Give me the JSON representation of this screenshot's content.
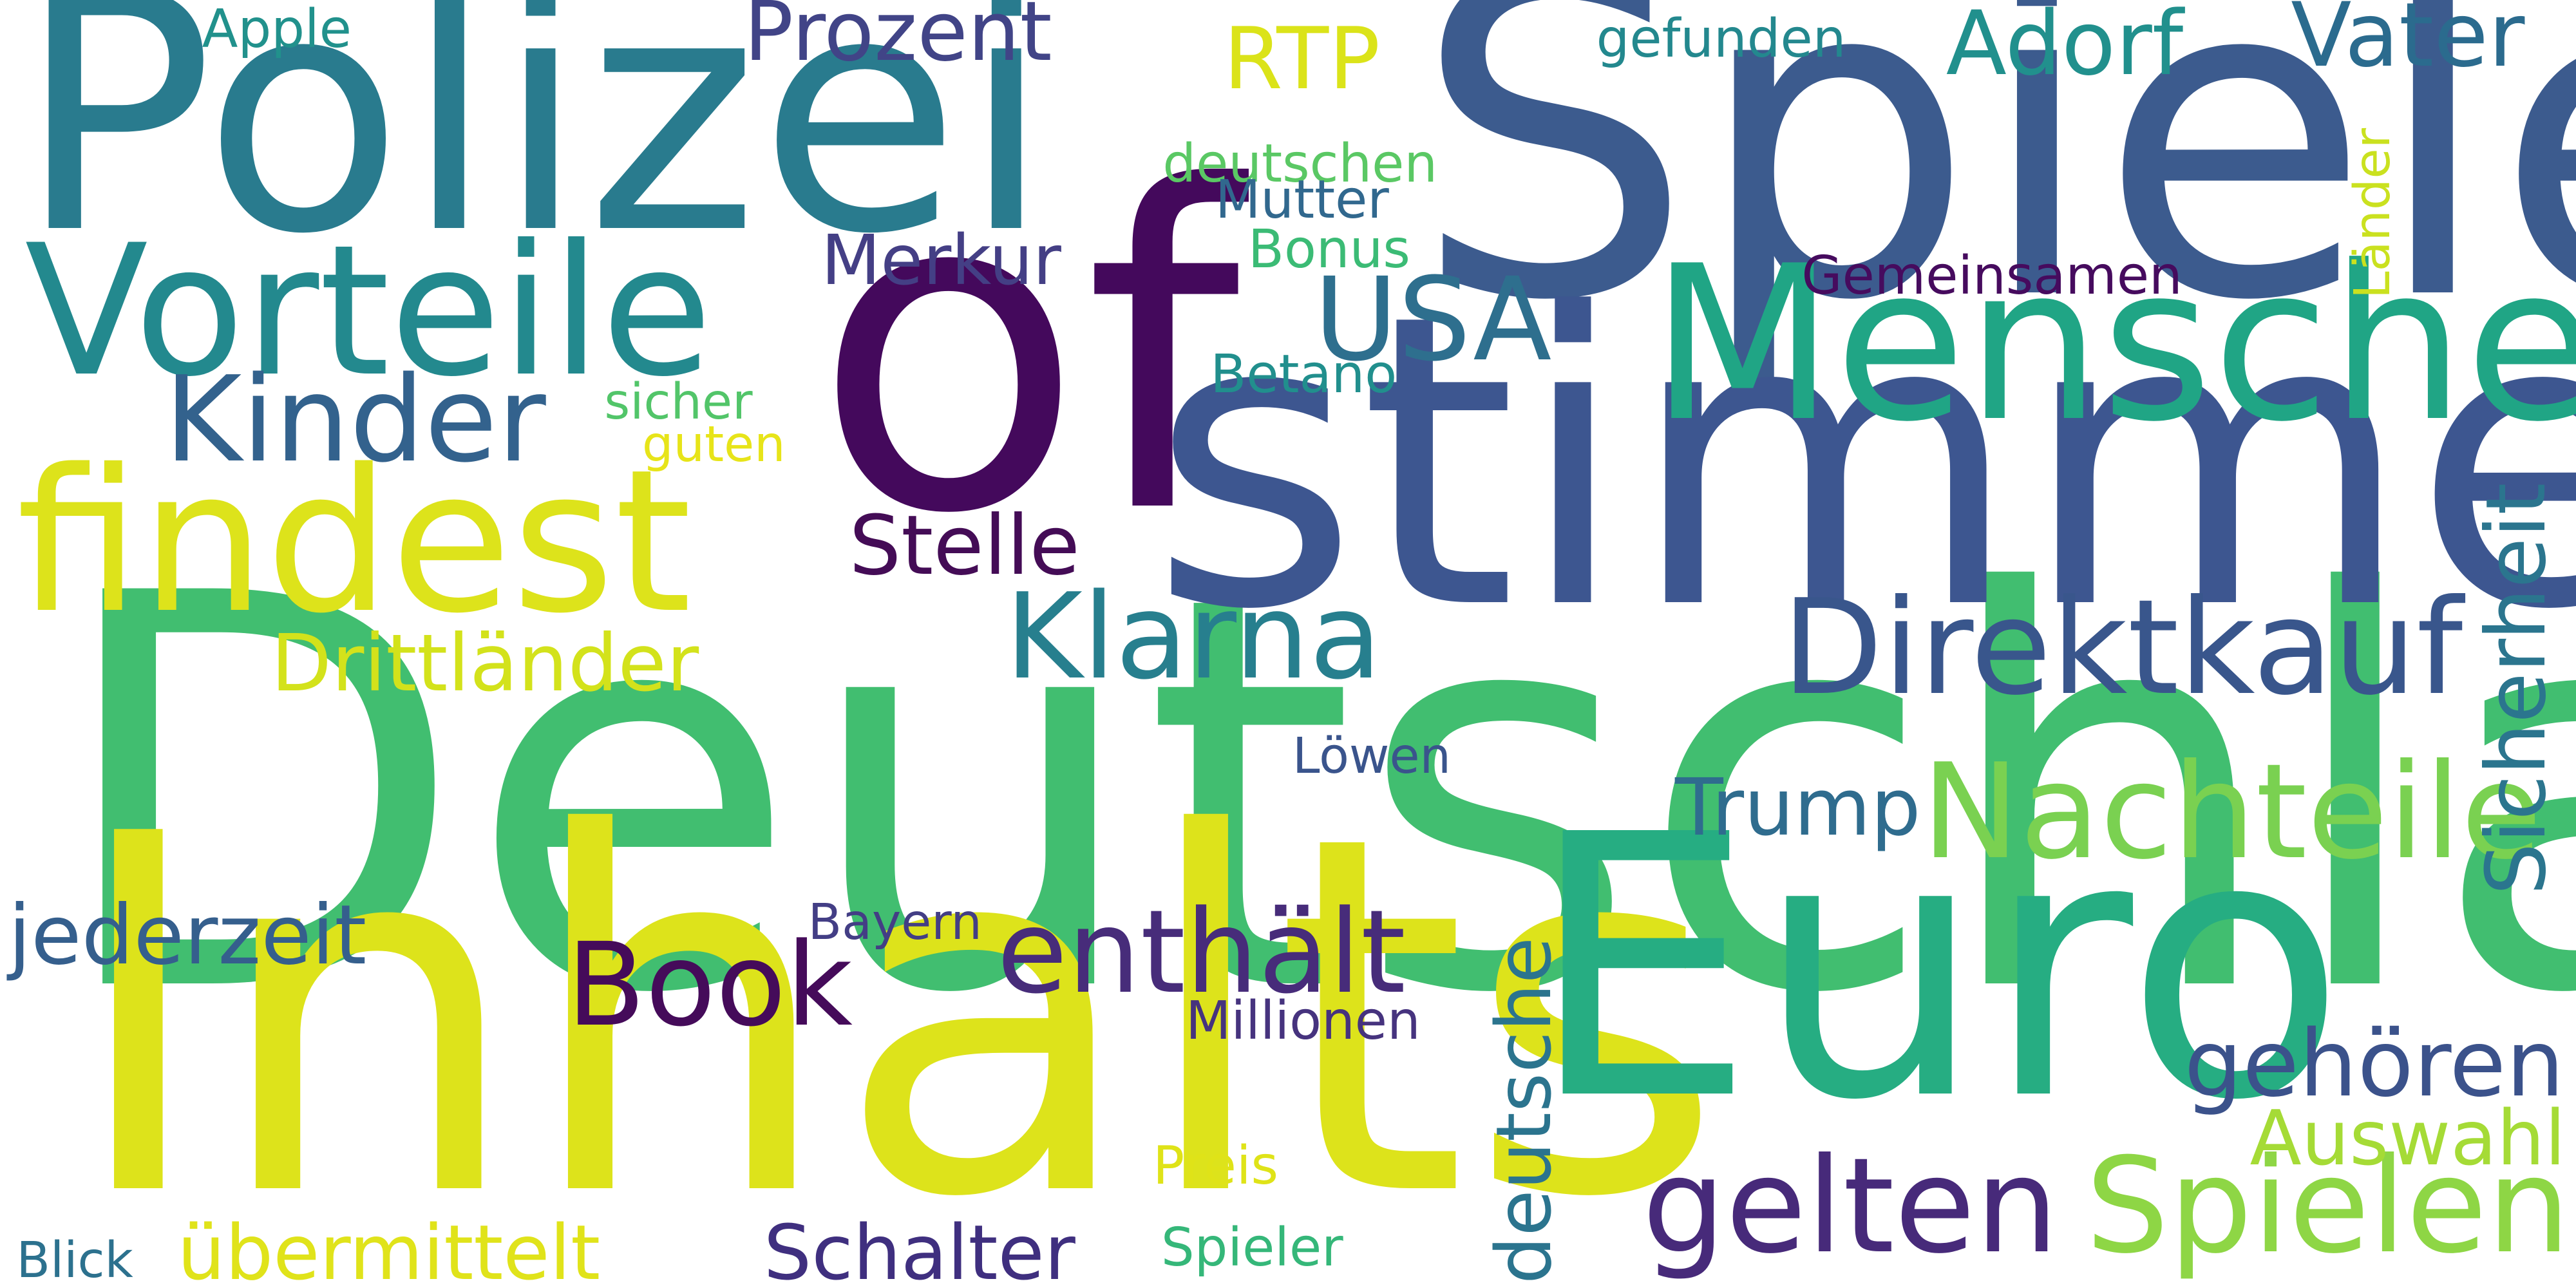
{
  "words": [
    {
      "text": "Deutschland",
      "color": "#41be70"
    },
    {
      "text": "Spiele",
      "color": "#3c5b8e"
    },
    {
      "text": "stimmen",
      "color": "#3d5690"
    },
    {
      "text": "Polizei",
      "color": "#297b8e"
    },
    {
      "text": "of",
      "color": "#44095c"
    },
    {
      "text": "Inhalts",
      "color": "#dde31b"
    },
    {
      "text": "Euro",
      "color": "#26ad82"
    },
    {
      "text": "Menschen",
      "color": "#20a585"
    },
    {
      "text": "Vorteile",
      "color": "#23898e"
    },
    {
      "text": "findest",
      "color": "#dde31b"
    },
    {
      "text": "Direktkauf",
      "color": "#39568c"
    },
    {
      "text": "Nachteile",
      "color": "#7ad151"
    },
    {
      "text": "Kinder",
      "color": "#33628d"
    },
    {
      "text": "Klarna",
      "color": "#277f8e"
    },
    {
      "text": "enthält",
      "color": "#472c7a"
    },
    {
      "text": "gelten",
      "color": "#472a7a"
    },
    {
      "text": "Spielen",
      "color": "#8ed645"
    },
    {
      "text": "Book",
      "color": "#450b5a"
    },
    {
      "text": "USA",
      "color": "#2e6f8e"
    },
    {
      "text": "Adorf",
      "color": "#21908d"
    },
    {
      "text": "Vater",
      "color": "#2b6b8e"
    },
    {
      "text": "Prozent",
      "color": "#414487"
    },
    {
      "text": "RTP",
      "color": "#dbe319"
    },
    {
      "text": "gehören",
      "color": "#3b528b"
    },
    {
      "text": "Drittländer",
      "color": "#d3e21b"
    },
    {
      "text": "jederzeit",
      "color": "#355f8d"
    },
    {
      "text": "Auswahl",
      "color": "#a5db36"
    },
    {
      "text": "Stelle",
      "color": "#440c56"
    },
    {
      "text": "Trump",
      "color": "#2f6c8e"
    },
    {
      "text": "Sicherheit",
      "color": "#2b758e"
    },
    {
      "text": "deutsche",
      "color": "#2b748e"
    },
    {
      "text": "Schalter",
      "color": "#3f2f7f"
    },
    {
      "text": "übermittelt",
      "color": "#e0e31a"
    },
    {
      "text": "Merkur",
      "color": "#443f85"
    },
    {
      "text": "Gemeinsamen",
      "color": "#460b5e"
    },
    {
      "text": "gefunden",
      "color": "#23888e"
    },
    {
      "text": "deutschen",
      "color": "#5ac864"
    },
    {
      "text": "Mutter",
      "color": "#31688e"
    },
    {
      "text": "Bonus",
      "color": "#3bbb75"
    },
    {
      "text": "Betano",
      "color": "#218f8d"
    },
    {
      "text": "Löwen",
      "color": "#3a548c"
    },
    {
      "text": "Bayern",
      "color": "#433e85"
    },
    {
      "text": "Millionen",
      "color": "#46337e"
    },
    {
      "text": "Preis",
      "color": "#dfe318"
    },
    {
      "text": "Spieler",
      "color": "#35b779"
    },
    {
      "text": "sicher",
      "color": "#52c569"
    },
    {
      "text": "guten",
      "color": "#e7e419"
    },
    {
      "text": "Apple",
      "color": "#21918c"
    },
    {
      "text": "Länder",
      "color": "#cae11f"
    },
    {
      "text": "Blick",
      "color": "#2c718e"
    }
  ]
}
